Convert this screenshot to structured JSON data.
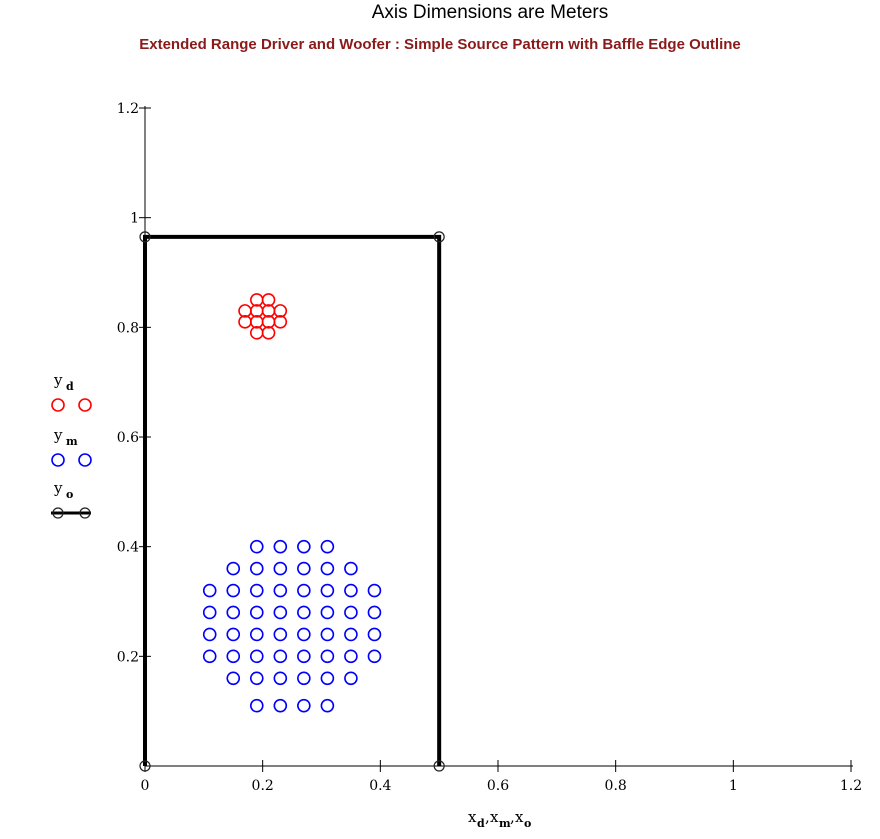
{
  "chart_data": {
    "type": "scatter",
    "title": "Axis Dimensions are Meters",
    "subtitle": "Extended Range Driver and Woofer : Simple Source Pattern with Baffle Edge Outline",
    "xlabel": {
      "parts": [
        "x",
        "d",
        ",",
        "x",
        "m",
        ",",
        "x",
        "o"
      ]
    },
    "xlim": [
      0,
      1.2
    ],
    "ylim": [
      0,
      1.2
    ],
    "x_ticks": [
      0,
      0.2,
      0.4,
      0.6,
      0.8,
      1,
      1.2
    ],
    "x_tick_labels": [
      "0",
      "0.2",
      "0.4",
      "0.6",
      "0.8",
      "1",
      "1.2"
    ],
    "y_ticks": [
      0.2,
      0.4,
      0.6,
      0.8,
      1,
      1.2
    ],
    "y_tick_labels": [
      "0.2",
      "0.4",
      "0.6",
      "0.8",
      "1",
      "1.2"
    ],
    "series": [
      {
        "name": "y_d",
        "legend_base": "y",
        "legend_sub": "d",
        "color": "#ff0000",
        "marker": "circle",
        "line": false,
        "points": [
          [
            0.19,
            0.85
          ],
          [
            0.21,
            0.85
          ],
          [
            0.17,
            0.83
          ],
          [
            0.19,
            0.83
          ],
          [
            0.21,
            0.83
          ],
          [
            0.23,
            0.83
          ],
          [
            0.17,
            0.81
          ],
          [
            0.19,
            0.81
          ],
          [
            0.21,
            0.81
          ],
          [
            0.23,
            0.81
          ],
          [
            0.19,
            0.79
          ],
          [
            0.21,
            0.79
          ]
        ]
      },
      {
        "name": "y_m",
        "legend_base": "y",
        "legend_sub": "m",
        "color": "#0000ff",
        "marker": "circle",
        "line": false,
        "rows": [
          {
            "y": 0.4,
            "x": [
              0.19,
              0.23,
              0.27,
              0.31
            ]
          },
          {
            "y": 0.36,
            "x": [
              0.15,
              0.19,
              0.23,
              0.27,
              0.31,
              0.35
            ]
          },
          {
            "y": 0.32,
            "x": [
              0.11,
              0.15,
              0.19,
              0.23,
              0.27,
              0.31,
              0.35,
              0.39
            ]
          },
          {
            "y": 0.28,
            "x": [
              0.11,
              0.15,
              0.19,
              0.23,
              0.27,
              0.31,
              0.35,
              0.39
            ]
          },
          {
            "y": 0.24,
            "x": [
              0.11,
              0.15,
              0.19,
              0.23,
              0.27,
              0.31,
              0.35,
              0.39
            ]
          },
          {
            "y": 0.2,
            "x": [
              0.11,
              0.15,
              0.19,
              0.23,
              0.27,
              0.31,
              0.35,
              0.39
            ]
          },
          {
            "y": 0.16,
            "x": [
              0.15,
              0.19,
              0.23,
              0.27,
              0.31,
              0.35
            ]
          },
          {
            "y": 0.11,
            "x": [
              0.19,
              0.23,
              0.27,
              0.31
            ]
          }
        ]
      },
      {
        "name": "y_o",
        "legend_base": "y",
        "legend_sub": "o",
        "color": "#000000",
        "marker": "circle",
        "line": true,
        "points": [
          [
            0,
            0
          ],
          [
            0,
            0.965
          ],
          [
            0.5,
            0.965
          ],
          [
            0.5,
            0
          ]
        ]
      }
    ],
    "grid": false,
    "legend_position": "left"
  }
}
